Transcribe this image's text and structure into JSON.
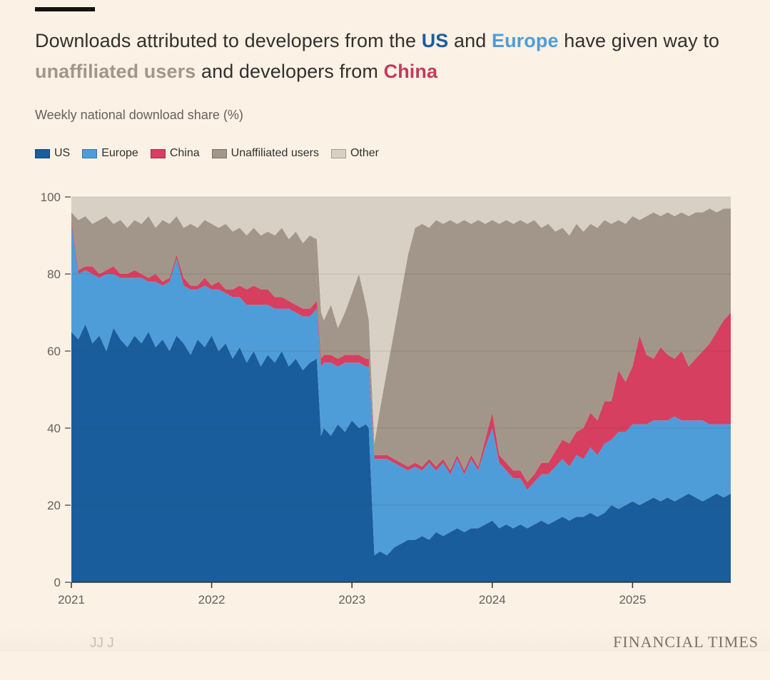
{
  "page": {
    "background": "#fbf1e5"
  },
  "header": {
    "title_parts": [
      {
        "text": "Downloads attributed to developers from the ",
        "color": "#33302e",
        "bold": false
      },
      {
        "text": "US",
        "color": "#1a5d9c",
        "bold": true
      },
      {
        "text": " and ",
        "color": "#33302e",
        "bold": false
      },
      {
        "text": "Europe",
        "color": "#4f9dd8",
        "bold": true
      },
      {
        "text": " have given way to ",
        "color": "#33302e",
        "bold": false
      },
      {
        "text": "unaffiliated users",
        "color": "#a2968a",
        "bold": true
      },
      {
        "text": " and developers from ",
        "color": "#33302e",
        "bold": false
      },
      {
        "text": "China",
        "color": "#c43b5e",
        "bold": true
      }
    ],
    "subtitle": "Weekly national download share (%)"
  },
  "legend": {
    "items": [
      {
        "label": "US",
        "color": "#1a5d9c"
      },
      {
        "label": "Europe",
        "color": "#4f9dd8"
      },
      {
        "label": "China",
        "color": "#d63f5f"
      },
      {
        "label": "Unaffiliated users",
        "color": "#a2968a"
      },
      {
        "label": "Other",
        "color": "#d8d0c5"
      }
    ]
  },
  "chart_data": {
    "type": "area",
    "stacked": true,
    "title": "Downloads attributed to developers from the US and Europe have given way to unaffiliated users and developers from China",
    "subtitle": "Weekly national download share (%)",
    "unit": "%",
    "xlabel": "",
    "ylabel": "Weekly national download share (%)",
    "xlim": [
      2021.0,
      2025.7
    ],
    "ylim": [
      0,
      100
    ],
    "xticks": [
      2021,
      2022,
      2023,
      2024,
      2025
    ],
    "yticks": [
      0,
      20,
      40,
      60,
      80,
      100
    ],
    "legend_position": "top",
    "grid": "horizontal",
    "x": [
      2021.0,
      2021.05,
      2021.1,
      2021.15,
      2021.2,
      2021.25,
      2021.3,
      2021.35,
      2021.4,
      2021.45,
      2021.5,
      2021.55,
      2021.6,
      2021.65,
      2021.7,
      2021.75,
      2021.8,
      2021.85,
      2021.9,
      2021.95,
      2022.0,
      2022.05,
      2022.1,
      2022.15,
      2022.2,
      2022.25,
      2022.3,
      2022.35,
      2022.4,
      2022.45,
      2022.5,
      2022.55,
      2022.6,
      2022.65,
      2022.7,
      2022.75,
      2022.78,
      2022.8,
      2022.85,
      2022.9,
      2022.95,
      2023.0,
      2023.05,
      2023.1,
      2023.12,
      2023.16,
      2023.2,
      2023.25,
      2023.3,
      2023.35,
      2023.4,
      2023.45,
      2023.5,
      2023.55,
      2023.6,
      2023.65,
      2023.7,
      2023.75,
      2023.8,
      2023.85,
      2023.9,
      2023.95,
      2024.0,
      2024.05,
      2024.1,
      2024.15,
      2024.2,
      2024.25,
      2024.3,
      2024.35,
      2024.4,
      2024.45,
      2024.5,
      2024.55,
      2024.6,
      2024.65,
      2024.7,
      2024.75,
      2024.8,
      2024.85,
      2024.9,
      2024.95,
      2025.0,
      2025.05,
      2025.1,
      2025.15,
      2025.2,
      2025.25,
      2025.3,
      2025.35,
      2025.4,
      2025.45,
      2025.5,
      2025.55,
      2025.6,
      2025.65,
      2025.7
    ],
    "series": [
      {
        "key": "us",
        "name": "US",
        "color": "#1a5d9c",
        "values": [
          65,
          63,
          67,
          62,
          64,
          60,
          66,
          63,
          61,
          64,
          62,
          65,
          61,
          63,
          60,
          64,
          62,
          59,
          63,
          61,
          64,
          60,
          62,
          58,
          61,
          57,
          60,
          56,
          59,
          57,
          60,
          56,
          58,
          55,
          57,
          58,
          38,
          40,
          38,
          41,
          39,
          42,
          40,
          41,
          40,
          7,
          8,
          7,
          9,
          10,
          11,
          11,
          12,
          11,
          13,
          12,
          13,
          14,
          13,
          14,
          14,
          15,
          16,
          14,
          15,
          14,
          15,
          14,
          15,
          16,
          15,
          16,
          17,
          16,
          17,
          17,
          18,
          17,
          18,
          20,
          19,
          20,
          21,
          20,
          21,
          22,
          21,
          22,
          21,
          22,
          23,
          22,
          21,
          22,
          23,
          22,
          23
        ]
      },
      {
        "key": "europe",
        "name": "Europe",
        "color": "#4f9dd8",
        "values": [
          28,
          17,
          14,
          18,
          15,
          20,
          14,
          16,
          18,
          15,
          17,
          13,
          17,
          14,
          18,
          20,
          15,
          17,
          13,
          16,
          12,
          16,
          13,
          16,
          13,
          15,
          12,
          16,
          13,
          14,
          11,
          15,
          12,
          14,
          12,
          13,
          18,
          17,
          19,
          15,
          18,
          15,
          17,
          15,
          16,
          25,
          24,
          25,
          22,
          20,
          18,
          19,
          17,
          20,
          16,
          19,
          15,
          18,
          15,
          18,
          15,
          20,
          24,
          17,
          14,
          13,
          12,
          10,
          11,
          12,
          13,
          14,
          15,
          14,
          16,
          15,
          17,
          16,
          18,
          17,
          20,
          19,
          20,
          21,
          20,
          20,
          21,
          20,
          22,
          20,
          19,
          20,
          21,
          19,
          18,
          19,
          18
        ]
      },
      {
        "key": "china",
        "name": "China",
        "color": "#d63f5f",
        "values": [
          1,
          1,
          1,
          2,
          1,
          1,
          2,
          1,
          1,
          2,
          1,
          1,
          2,
          1,
          1,
          1,
          2,
          1,
          1,
          2,
          1,
          2,
          1,
          2,
          3,
          4,
          5,
          4,
          4,
          3,
          3,
          2,
          2,
          2,
          2,
          2,
          2,
          2,
          2,
          2,
          2,
          2,
          2,
          2,
          2,
          1,
          1,
          1,
          1,
          1,
          1,
          1,
          1,
          1,
          1,
          1,
          1,
          1,
          1,
          1,
          1,
          2,
          4,
          2,
          2,
          2,
          2,
          2,
          2,
          3,
          3,
          4,
          5,
          6,
          6,
          8,
          9,
          9,
          11,
          10,
          16,
          13,
          15,
          23,
          18,
          16,
          19,
          17,
          15,
          18,
          14,
          16,
          18,
          21,
          24,
          27,
          29
        ]
      },
      {
        "key": "unaffiliated",
        "name": "Unaffiliated users",
        "color": "#a2968a",
        "values": [
          2,
          13,
          13,
          11,
          14,
          14,
          11,
          14,
          12,
          13,
          13,
          16,
          12,
          16,
          14,
          10,
          13,
          16,
          15,
          15,
          16,
          14,
          17,
          15,
          15,
          14,
          15,
          14,
          15,
          16,
          18,
          16,
          19,
          17,
          19,
          16,
          12,
          9,
          13,
          8,
          11,
          16,
          21,
          14,
          10,
          3,
          12,
          22,
          33,
          44,
          55,
          61,
          63,
          60,
          64,
          61,
          65,
          60,
          65,
          60,
          64,
          56,
          50,
          60,
          63,
          64,
          65,
          67,
          66,
          61,
          62,
          57,
          55,
          54,
          54,
          51,
          49,
          50,
          47,
          46,
          39,
          41,
          39,
          30,
          36,
          38,
          34,
          37,
          37,
          36,
          39,
          38,
          36,
          35,
          31,
          29,
          27
        ]
      },
      {
        "key": "other",
        "name": "Other",
        "color": "#d8d0c5",
        "values": [
          4,
          6,
          5,
          7,
          6,
          5,
          7,
          6,
          8,
          6,
          7,
          5,
          8,
          6,
          7,
          5,
          8,
          7,
          8,
          6,
          7,
          8,
          7,
          9,
          8,
          10,
          8,
          10,
          9,
          10,
          8,
          11,
          9,
          12,
          10,
          11,
          30,
          32,
          28,
          34,
          30,
          25,
          20,
          28,
          32,
          64,
          55,
          45,
          35,
          25,
          15,
          8,
          7,
          8,
          6,
          7,
          6,
          7,
          6,
          7,
          6,
          7,
          6,
          7,
          6,
          7,
          6,
          7,
          6,
          8,
          7,
          9,
          8,
          10,
          7,
          9,
          7,
          8,
          6,
          7,
          6,
          7,
          5,
          6,
          5,
          4,
          5,
          4,
          5,
          4,
          5,
          4,
          4,
          3,
          4,
          3,
          3
        ]
      }
    ]
  },
  "footer": {
    "watermark": "JJ  J",
    "brand": "FINANCIAL TIMES"
  }
}
